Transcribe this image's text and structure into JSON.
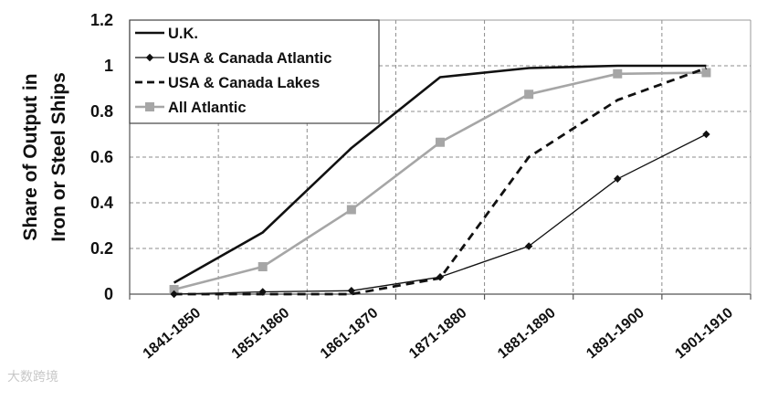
{
  "chart_data": {
    "type": "line",
    "title": "",
    "xlabel": "",
    "ylabel_lines": [
      "Share of Output in",
      "Iron or Steel Ships"
    ],
    "categories": [
      "1841-1850",
      "1851-1860",
      "1861-1870",
      "1871-1880",
      "1881-1890",
      "1891-1900",
      "1901-1910"
    ],
    "ylim": [
      0,
      1.2
    ],
    "yticks": [
      "0",
      "0.2",
      "0.4",
      "0.6",
      "0.8",
      "1",
      "1.2"
    ],
    "grid": true,
    "legend_position": "top-left",
    "series": [
      {
        "name": "U.K.",
        "values": [
          0.05,
          0.27,
          0.64,
          0.95,
          0.99,
          1.0,
          1.0
        ],
        "color": "#111111",
        "style": "solid-thick",
        "marker": "none"
      },
      {
        "name": "USA & Canada Atlantic",
        "values": [
          0.0,
          0.01,
          0.015,
          0.075,
          0.21,
          0.505,
          0.7
        ],
        "color": "#111111",
        "style": "solid-thin",
        "marker": "diamond"
      },
      {
        "name": "USA & Canada Lakes",
        "values": [
          0.0,
          0.0,
          0.0,
          0.07,
          0.6,
          0.85,
          0.99
        ],
        "color": "#111111",
        "style": "dashed",
        "marker": "none"
      },
      {
        "name": "All Atlantic",
        "values": [
          0.02,
          0.12,
          0.37,
          0.665,
          0.875,
          0.965,
          0.97
        ],
        "color": "#a6a6a6",
        "style": "solid-gray",
        "marker": "square"
      }
    ]
  },
  "watermark": "大数跨境"
}
